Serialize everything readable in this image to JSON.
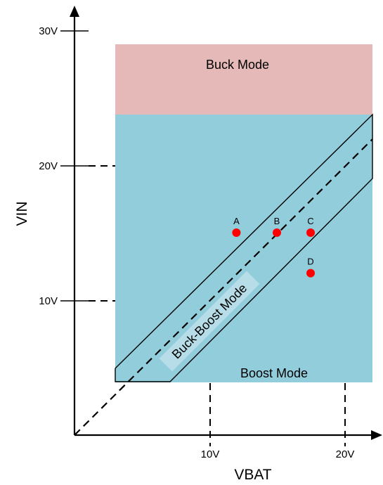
{
  "colors": {
    "buck_region": "#e5b9b7",
    "boost_region": "#92cddc",
    "buck_boost_label_bg": "#b7dee8",
    "point": "#ff0000",
    "line": "#000000"
  },
  "axes": {
    "x_label": "VBAT",
    "y_label": "VIN",
    "x_ticks": [
      {
        "value": 10,
        "label": "10V"
      },
      {
        "value": 20,
        "label": "20V"
      }
    ],
    "y_ticks": [
      {
        "value": 10,
        "label": "10V"
      },
      {
        "value": 20,
        "label": "20V"
      },
      {
        "value": 30,
        "label": "30V"
      }
    ]
  },
  "regions": {
    "buck": {
      "label": "Buck Mode"
    },
    "boost": {
      "label": "Boost Mode"
    },
    "buck_boost": {
      "label": "Buck-Boost Mode"
    }
  },
  "operating_points": [
    {
      "label": "A",
      "vbat": 12,
      "vin": 15
    },
    {
      "label": "B",
      "vbat": 15,
      "vin": 15
    },
    {
      "label": "C",
      "vbat": 17.5,
      "vin": 15
    },
    {
      "label": "D",
      "vbat": 17.5,
      "vin": 12
    }
  ]
}
